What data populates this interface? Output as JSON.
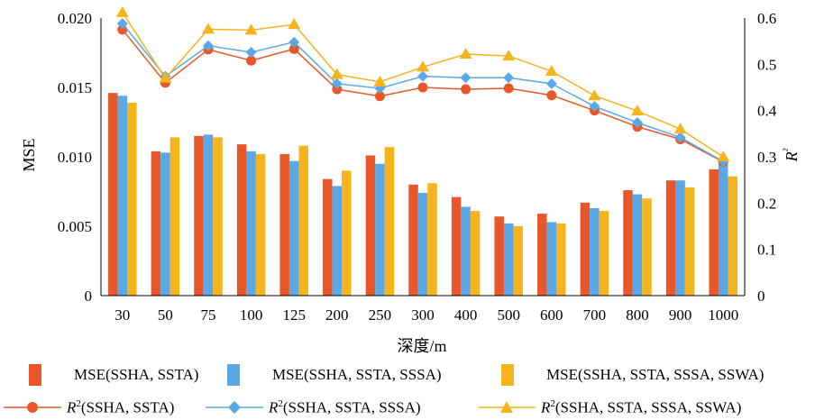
{
  "chart_data": {
    "type": "bar+line",
    "xlabel": "深度/m",
    "ylabel": "MSE",
    "y2label": "R²",
    "categories": [
      "30",
      "50",
      "75",
      "100",
      "125",
      "200",
      "250",
      "300",
      "400",
      "500",
      "600",
      "700",
      "800",
      "900",
      "1000"
    ],
    "ylim": [
      0,
      0.02
    ],
    "yticks": [
      "0",
      "0.005",
      "0.010",
      "0.015",
      "0.020"
    ],
    "y2lim": [
      0,
      0.6
    ],
    "y2ticks": [
      "0",
      "0.1",
      "0.2",
      "0.3",
      "0.4",
      "0.5",
      "0.6"
    ],
    "grid": false,
    "legend_position": "bottom",
    "bar_series": [
      {
        "name": "MSE(SSHA, SSTA)",
        "color": "#E8572A",
        "values": [
          0.0146,
          0.0104,
          0.0115,
          0.0109,
          0.0102,
          0.0084,
          0.0101,
          0.008,
          0.0071,
          0.0057,
          0.0059,
          0.0067,
          0.0076,
          0.0083,
          0.0091
        ]
      },
      {
        "name": "MSE(SSHA, SSTA, SSSA)",
        "color": "#5AA9E6",
        "values": [
          0.0144,
          0.0103,
          0.0116,
          0.0104,
          0.0097,
          0.0079,
          0.0095,
          0.0074,
          0.0064,
          0.0052,
          0.0053,
          0.0063,
          0.0073,
          0.0083,
          0.0096
        ]
      },
      {
        "name": "MSE(SSHA, SSTA, SSSA, SSWA)",
        "color": "#F5B31C",
        "values": [
          0.0139,
          0.0114,
          0.0114,
          0.0102,
          0.0108,
          0.009,
          0.0107,
          0.0081,
          0.0061,
          0.005,
          0.0052,
          0.0061,
          0.007,
          0.0078,
          0.0086
        ]
      }
    ],
    "line_series": [
      {
        "name_prefix": "R",
        "name_sup": "2",
        "name_suffix": "(SSHA, SSTA)",
        "color": "#E8572A",
        "marker": "circle",
        "values": [
          0.575,
          0.46,
          0.532,
          0.508,
          0.533,
          0.446,
          0.431,
          0.45,
          0.446,
          0.448,
          0.433,
          0.4,
          0.365,
          0.338,
          0.289
        ]
      },
      {
        "name_prefix": "R",
        "name_sup": "2",
        "name_suffix": "(SSHA, SSTA, SSSA)",
        "color": "#5AA9E6",
        "marker": "diamond",
        "values": [
          0.588,
          0.474,
          0.54,
          0.526,
          0.548,
          0.458,
          0.448,
          0.474,
          0.471,
          0.471,
          0.458,
          0.409,
          0.374,
          0.342,
          0.29
        ]
      },
      {
        "name_prefix": "R",
        "name_sup": "2",
        "name_suffix": "(SSHA, SSTA, SSSA, SSWA)",
        "color": "#F5B31C",
        "marker": "triangle",
        "values": [
          0.612,
          0.47,
          0.576,
          0.574,
          0.586,
          0.478,
          0.462,
          0.494,
          0.522,
          0.518,
          0.485,
          0.432,
          0.399,
          0.36,
          0.3
        ]
      }
    ]
  }
}
